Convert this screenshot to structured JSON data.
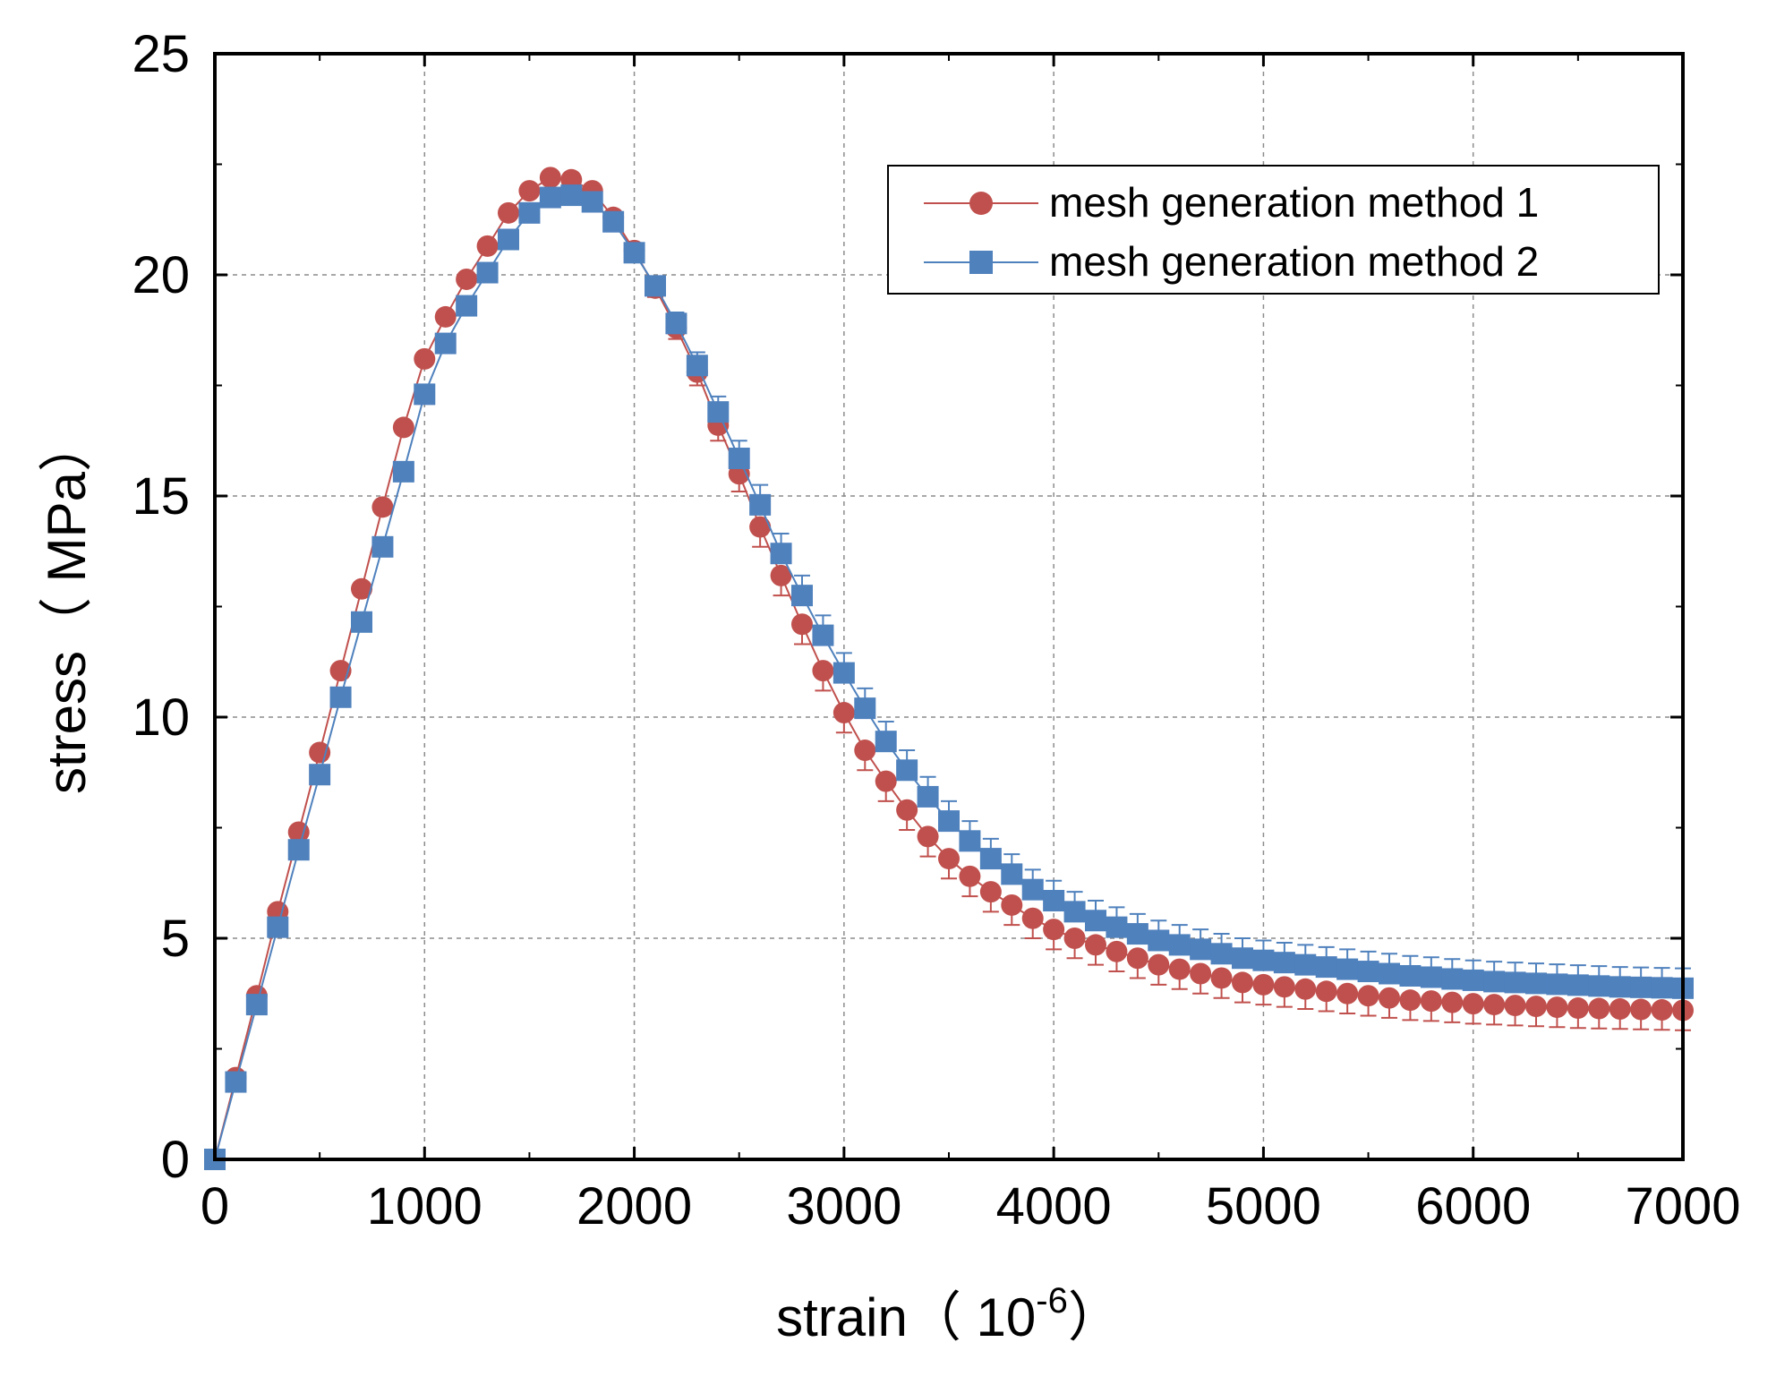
{
  "chart_data": {
    "type": "scatter",
    "xlabel_main": "strain（ 10",
    "xlabel_sup": "-6",
    "xlabel_close": "）",
    "ylabel": "stress（ MPa）",
    "xlim": [
      0,
      7000
    ],
    "ylim": [
      0,
      25
    ],
    "x_ticks": [
      "0",
      "1000",
      "2000",
      "3000",
      "4000",
      "5000",
      "6000",
      "7000"
    ],
    "y_ticks": [
      "0",
      "5",
      "10",
      "15",
      "20",
      "25"
    ],
    "grid": true,
    "legend_position": "top-right",
    "x": [
      0,
      100,
      200,
      300,
      400,
      500,
      600,
      700,
      800,
      900,
      1000,
      1100,
      1200,
      1300,
      1400,
      1500,
      1600,
      1700,
      1800,
      1900,
      2000,
      2100,
      2200,
      2300,
      2400,
      2500,
      2600,
      2700,
      2800,
      2900,
      3000,
      3100,
      3200,
      3300,
      3400,
      3500,
      3600,
      3700,
      3800,
      3900,
      4000,
      4100,
      4200,
      4300,
      4400,
      4500,
      4600,
      4700,
      4800,
      4900,
      5000,
      5100,
      5200,
      5300,
      5400,
      5500,
      5600,
      5700,
      5800,
      5900,
      6000,
      6100,
      6200,
      6300,
      6400,
      6500,
      6600,
      6700,
      6800,
      6900,
      7000
    ],
    "series": [
      {
        "name": "mesh generation method 1",
        "color": "#c0504d",
        "marker": "circle",
        "values": [
          0,
          1.85,
          3.7,
          5.6,
          7.4,
          9.2,
          11.05,
          12.9,
          14.75,
          16.55,
          18.1,
          19.05,
          19.9,
          20.65,
          21.4,
          21.9,
          22.2,
          22.15,
          21.9,
          21.3,
          20.55,
          19.7,
          18.8,
          17.8,
          16.6,
          15.5,
          14.3,
          13.2,
          12.1,
          11.05,
          10.1,
          9.25,
          8.55,
          7.9,
          7.3,
          6.8,
          6.4,
          6.05,
          5.75,
          5.45,
          5.2,
          5.0,
          4.85,
          4.7,
          4.55,
          4.4,
          4.3,
          4.2,
          4.1,
          4.0,
          3.95,
          3.9,
          3.85,
          3.8,
          3.75,
          3.7,
          3.65,
          3.6,
          3.58,
          3.55,
          3.52,
          3.5,
          3.48,
          3.46,
          3.44,
          3.42,
          3.41,
          3.4,
          3.39,
          3.38,
          3.37
        ],
        "error_low": [
          0,
          0.05,
          0.07,
          0.1,
          0.12,
          0.15,
          0.15,
          0.15,
          0.15,
          0.1,
          0.1,
          0.1,
          0.1,
          0.1,
          0.1,
          0.1,
          0.1,
          0.1,
          0.1,
          0.1,
          0.15,
          0.2,
          0.25,
          0.3,
          0.35,
          0.4,
          0.45,
          0.45,
          0.45,
          0.45,
          0.45,
          0.45,
          0.45,
          0.45,
          0.45,
          0.45,
          0.45,
          0.45,
          0.45,
          0.45,
          0.45,
          0.45,
          0.45,
          0.45,
          0.45,
          0.45,
          0.45,
          0.45,
          0.45,
          0.45,
          0.45,
          0.45,
          0.45,
          0.45,
          0.45,
          0.45,
          0.45,
          0.45,
          0.45,
          0.45,
          0.45,
          0.45,
          0.45,
          0.45,
          0.45,
          0.45,
          0.45,
          0.45,
          0.45,
          0.45,
          0.45
        ]
      },
      {
        "name": "mesh generation method 2",
        "color": "#4f81bd",
        "marker": "square",
        "values": [
          0,
          1.75,
          3.5,
          5.25,
          7.0,
          8.7,
          10.45,
          12.15,
          13.85,
          15.55,
          17.3,
          18.45,
          19.3,
          20.05,
          20.8,
          21.4,
          21.75,
          21.8,
          21.65,
          21.2,
          20.5,
          19.75,
          18.9,
          17.95,
          16.9,
          15.85,
          14.8,
          13.7,
          12.75,
          11.85,
          11.0,
          10.2,
          9.45,
          8.8,
          8.2,
          7.65,
          7.2,
          6.8,
          6.45,
          6.1,
          5.85,
          5.6,
          5.4,
          5.25,
          5.1,
          4.95,
          4.85,
          4.75,
          4.65,
          4.55,
          4.5,
          4.45,
          4.4,
          4.35,
          4.3,
          4.25,
          4.2,
          4.15,
          4.12,
          4.08,
          4.05,
          4.02,
          4.0,
          3.98,
          3.96,
          3.94,
          3.92,
          3.9,
          3.89,
          3.88,
          3.87
        ],
        "error_high": [
          0,
          0.05,
          0.07,
          0.1,
          0.12,
          0.15,
          0.15,
          0.15,
          0.15,
          0.1,
          0.1,
          0.1,
          0.1,
          0.1,
          0.1,
          0.1,
          0.1,
          0.1,
          0.1,
          0.1,
          0.15,
          0.2,
          0.25,
          0.3,
          0.35,
          0.4,
          0.45,
          0.45,
          0.45,
          0.45,
          0.45,
          0.45,
          0.45,
          0.45,
          0.45,
          0.45,
          0.45,
          0.45,
          0.45,
          0.45,
          0.45,
          0.45,
          0.45,
          0.45,
          0.45,
          0.45,
          0.45,
          0.45,
          0.45,
          0.45,
          0.45,
          0.45,
          0.45,
          0.45,
          0.45,
          0.45,
          0.45,
          0.45,
          0.45,
          0.45,
          0.45,
          0.45,
          0.45,
          0.45,
          0.45,
          0.45,
          0.45,
          0.45,
          0.45,
          0.45,
          0.45
        ]
      }
    ]
  }
}
